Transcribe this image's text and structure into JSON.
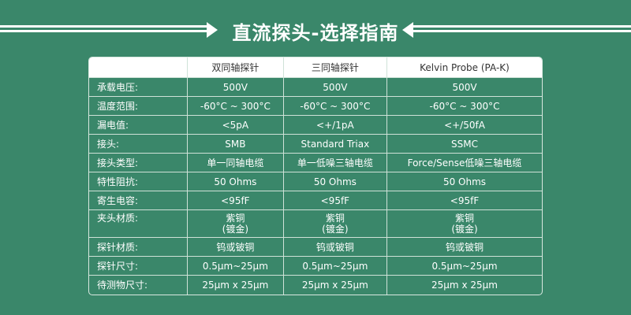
{
  "title": "直流探头-选择指南",
  "headers": [
    "",
    "双同轴探针",
    "三同轴探针",
    "Kelvin Probe (PA-K)"
  ],
  "rows": [
    {
      "label": "承载电压:",
      "values": [
        "500V",
        "500V",
        "500V"
      ]
    },
    {
      "label": "温度范围:",
      "values": [
        "-60°C ~ 300°C",
        "-60°C ~ 300°C",
        "-60°C ~ 300°C"
      ]
    },
    {
      "label": "漏电值:",
      "values": [
        "<5pA",
        "<+/1pA",
        "<+/50fA"
      ]
    },
    {
      "label": "接头:",
      "values": [
        "SMB",
        "Standard Triax",
        "SSMC"
      ]
    },
    {
      "label": "接头类型:",
      "values": [
        "单一同轴电缆",
        "单一低噪三轴电缆",
        "Force/Sense低噪三轴电缆"
      ]
    },
    {
      "label": "特性阻抗:",
      "values": [
        "50 Ohms",
        "50 Ohms",
        "50 Ohms"
      ]
    },
    {
      "label": "寄生电容:",
      "values": [
        "<95fF",
        "<95fF",
        "<95fF"
      ]
    },
    {
      "label": "夹头材质:",
      "values": [
        "紫铜\n(镀金)",
        "紫铜\n(镀金)",
        "紫铜\n(镀金)"
      ]
    },
    {
      "label": "探针材质:",
      "values": [
        "钨或铍铜",
        "钨或铍铜",
        "钨或铍铜"
      ]
    },
    {
      "label": "探针尺寸:",
      "values": [
        "0.5μm~25μm",
        "0.5μm~25μm",
        "0.5μm~25μm"
      ]
    },
    {
      "label": "待测物尺寸:",
      "values": [
        "25μm x 25μm",
        "25μm x 25μm",
        "25μm x 25μm"
      ]
    }
  ]
}
